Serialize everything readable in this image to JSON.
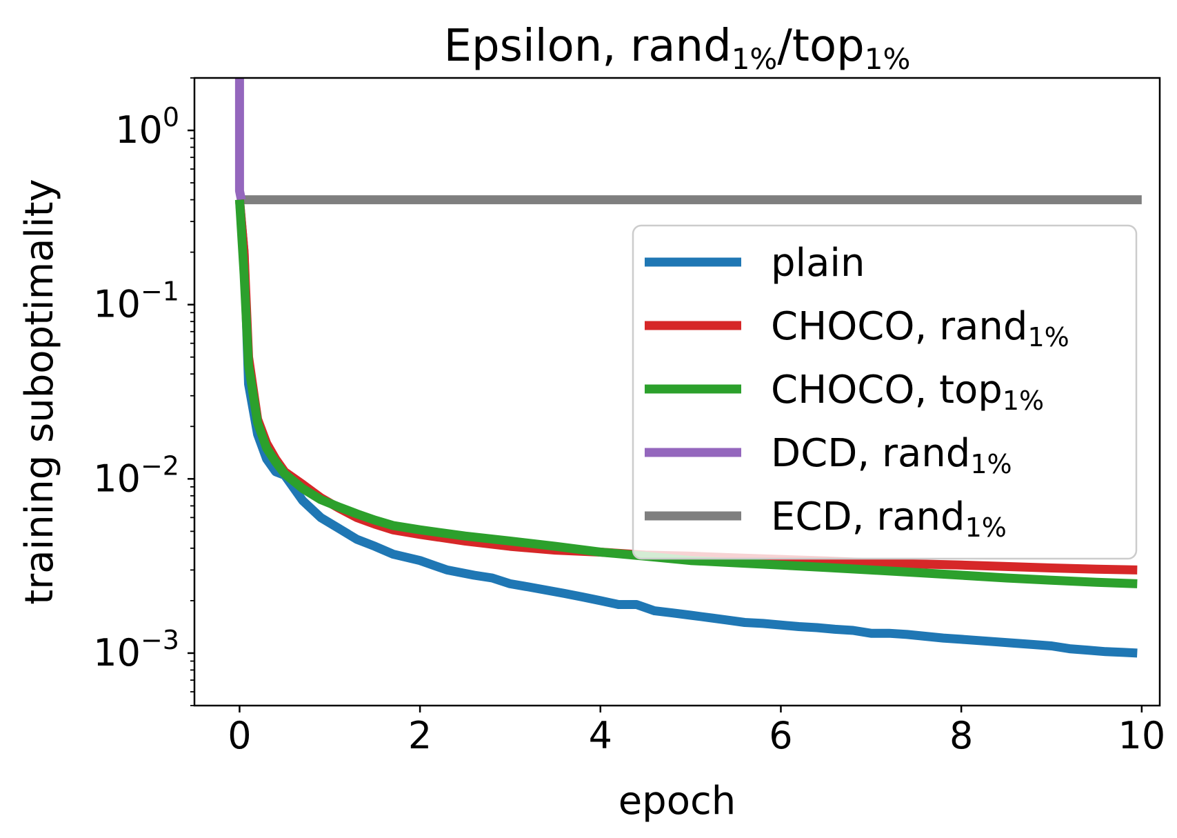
{
  "chart_data": {
    "type": "line",
    "title": {
      "main": "Epsilon, rand",
      "sub1": "1%",
      "mid": "/top",
      "sub2": "1%"
    },
    "xlabel": "epoch",
    "ylabel": "training suboptimality",
    "yscale": "log",
    "xlim": [
      -0.5,
      10.2
    ],
    "ylim": [
      0.0005,
      2.0
    ],
    "xticks": [
      0,
      2,
      4,
      6,
      8,
      10
    ],
    "xtick_labels": [
      "0",
      "2",
      "4",
      "6",
      "8",
      "10"
    ],
    "yticks": [
      {
        "value": 1,
        "base": "10",
        "exp": "0"
      },
      {
        "value": 0.1,
        "base": "10",
        "exp": "−1"
      },
      {
        "value": 0.01,
        "base": "10",
        "exp": "−2"
      },
      {
        "value": 0.001,
        "base": "10",
        "exp": "−3"
      }
    ],
    "grid": false,
    "legend_position": "center-right",
    "series": [
      {
        "name": "plain",
        "label_parts": {
          "main": "plain",
          "sub": ""
        },
        "color": "#1f77b4",
        "x": [
          0.0,
          0.05,
          0.1,
          0.2,
          0.3,
          0.4,
          0.5,
          0.7,
          0.9,
          1.1,
          1.3,
          1.5,
          1.7,
          2.0,
          2.3,
          2.6,
          2.8,
          3.0,
          3.2,
          3.4,
          3.6,
          3.8,
          4.0,
          4.2,
          4.4,
          4.6,
          4.8,
          5.0,
          5.2,
          5.4,
          5.6,
          5.8,
          6.0,
          6.2,
          6.4,
          6.6,
          6.8,
          7.0,
          7.2,
          7.4,
          7.6,
          7.8,
          8.0,
          8.2,
          8.4,
          8.6,
          8.8,
          9.0,
          9.2,
          9.4,
          9.6,
          9.8,
          9.95
        ],
        "y": [
          0.4,
          0.2,
          0.035,
          0.018,
          0.013,
          0.011,
          0.0105,
          0.0075,
          0.006,
          0.0052,
          0.0045,
          0.0041,
          0.0037,
          0.0034,
          0.003,
          0.0028,
          0.0027,
          0.0025,
          0.0024,
          0.0023,
          0.0022,
          0.0021,
          0.002,
          0.0019,
          0.0019,
          0.00175,
          0.0017,
          0.00165,
          0.0016,
          0.00155,
          0.0015,
          0.00148,
          0.00145,
          0.00142,
          0.0014,
          0.00137,
          0.00135,
          0.0013,
          0.0013,
          0.00128,
          0.00125,
          0.00122,
          0.0012,
          0.00118,
          0.00116,
          0.00114,
          0.00112,
          0.0011,
          0.00106,
          0.00104,
          0.00102,
          0.00101,
          0.001
        ]
      },
      {
        "name": "CHOCO, rand1%",
        "label_parts": {
          "main": "CHOCO,  rand",
          "sub": "1%"
        },
        "color": "#d62728",
        "x": [
          0.0,
          0.05,
          0.1,
          0.2,
          0.3,
          0.4,
          0.5,
          0.7,
          0.9,
          1.1,
          1.3,
          1.5,
          1.7,
          2.0,
          2.5,
          3.0,
          3.5,
          4.0,
          4.5,
          5.0,
          5.5,
          6.0,
          6.5,
          7.0,
          7.5,
          8.0,
          8.5,
          9.0,
          9.5,
          9.95
        ],
        "y": [
          0.4,
          0.2,
          0.05,
          0.022,
          0.016,
          0.013,
          0.011,
          0.0093,
          0.0078,
          0.0068,
          0.006,
          0.0055,
          0.0051,
          0.0048,
          0.0044,
          0.0041,
          0.0039,
          0.0038,
          0.00365,
          0.0036,
          0.00352,
          0.00345,
          0.00338,
          0.0033,
          0.00325,
          0.0032,
          0.00314,
          0.00308,
          0.00303,
          0.003
        ]
      },
      {
        "name": "CHOCO, top1%",
        "label_parts": {
          "main": "CHOCO,  top",
          "sub": "1%"
        },
        "color": "#2ca02c",
        "x": [
          0.0,
          0.05,
          0.1,
          0.2,
          0.3,
          0.4,
          0.5,
          0.7,
          0.9,
          1.1,
          1.3,
          1.5,
          1.7,
          2.0,
          2.5,
          3.0,
          3.5,
          4.0,
          4.5,
          5.0,
          5.5,
          6.0,
          6.5,
          7.0,
          7.5,
          8.0,
          8.5,
          9.0,
          9.5,
          9.95
        ],
        "y": [
          0.4,
          0.15,
          0.045,
          0.021,
          0.015,
          0.0125,
          0.0107,
          0.0088,
          0.0076,
          0.0069,
          0.0063,
          0.0058,
          0.0054,
          0.0051,
          0.0047,
          0.0044,
          0.0041,
          0.0038,
          0.0036,
          0.0034,
          0.0033,
          0.0032,
          0.0031,
          0.003,
          0.0029,
          0.0028,
          0.0027,
          0.00262,
          0.00255,
          0.0025
        ]
      },
      {
        "name": "DCD, rand1%",
        "label_parts": {
          "main": "DCD,  rand",
          "sub": "1%"
        },
        "color": "#9467bd",
        "x": [
          0.0,
          0.0,
          0.02
        ],
        "y": [
          2.0,
          0.45,
          0.4
        ]
      },
      {
        "name": "ECD, rand1%",
        "label_parts": {
          "main": "ECD,  rand",
          "sub": "1%"
        },
        "color": "#7f7f7f",
        "x": [
          0.0,
          10.0
        ],
        "y": [
          0.4,
          0.4
        ]
      }
    ]
  }
}
